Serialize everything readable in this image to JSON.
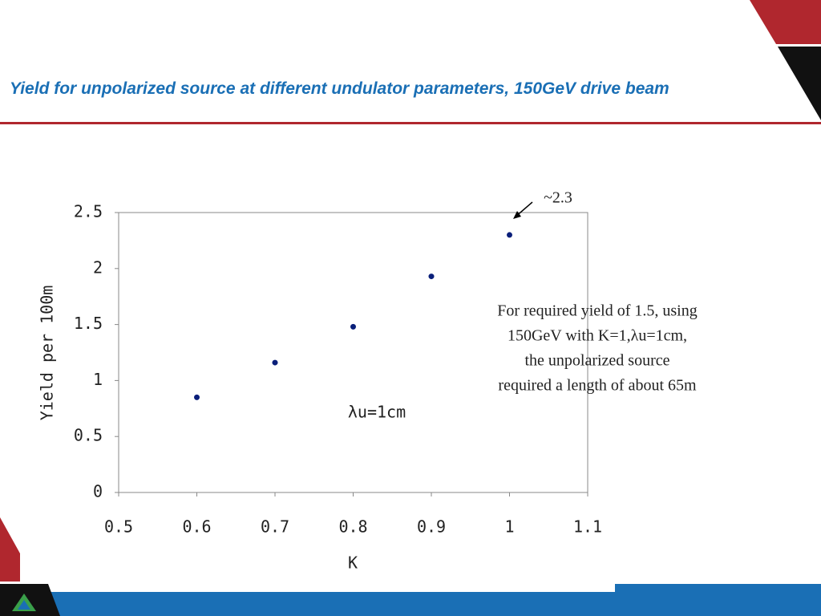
{
  "slide": {
    "title": "Yield for unpolarized source at different undulator parameters, 150GeV drive beam"
  },
  "chart_data": {
    "type": "scatter",
    "x": [
      0.6,
      0.7,
      0.8,
      0.9,
      1
    ],
    "values": [
      0.85,
      1.16,
      1.48,
      1.93,
      2.3
    ],
    "color": "#0a1f7a",
    "xlim": [
      0.5,
      1.1
    ],
    "xticks": [
      0.5,
      0.6,
      0.7,
      0.8,
      0.9,
      1,
      1.1
    ],
    "ylim": [
      0,
      2.5
    ],
    "yticks": [
      0,
      0.5,
      1,
      1.5,
      2,
      2.5
    ],
    "x_label": "K",
    "y_label": "Yield per 100m",
    "grid": false,
    "annotations": {
      "peak": "~2.3",
      "series_label": "λu=1cm",
      "note": [
        "For required yield of 1.5, using",
        "150GeV with K=1,λu=1cm,",
        "the unpolarized source",
        "required a length of about 65m"
      ]
    }
  }
}
